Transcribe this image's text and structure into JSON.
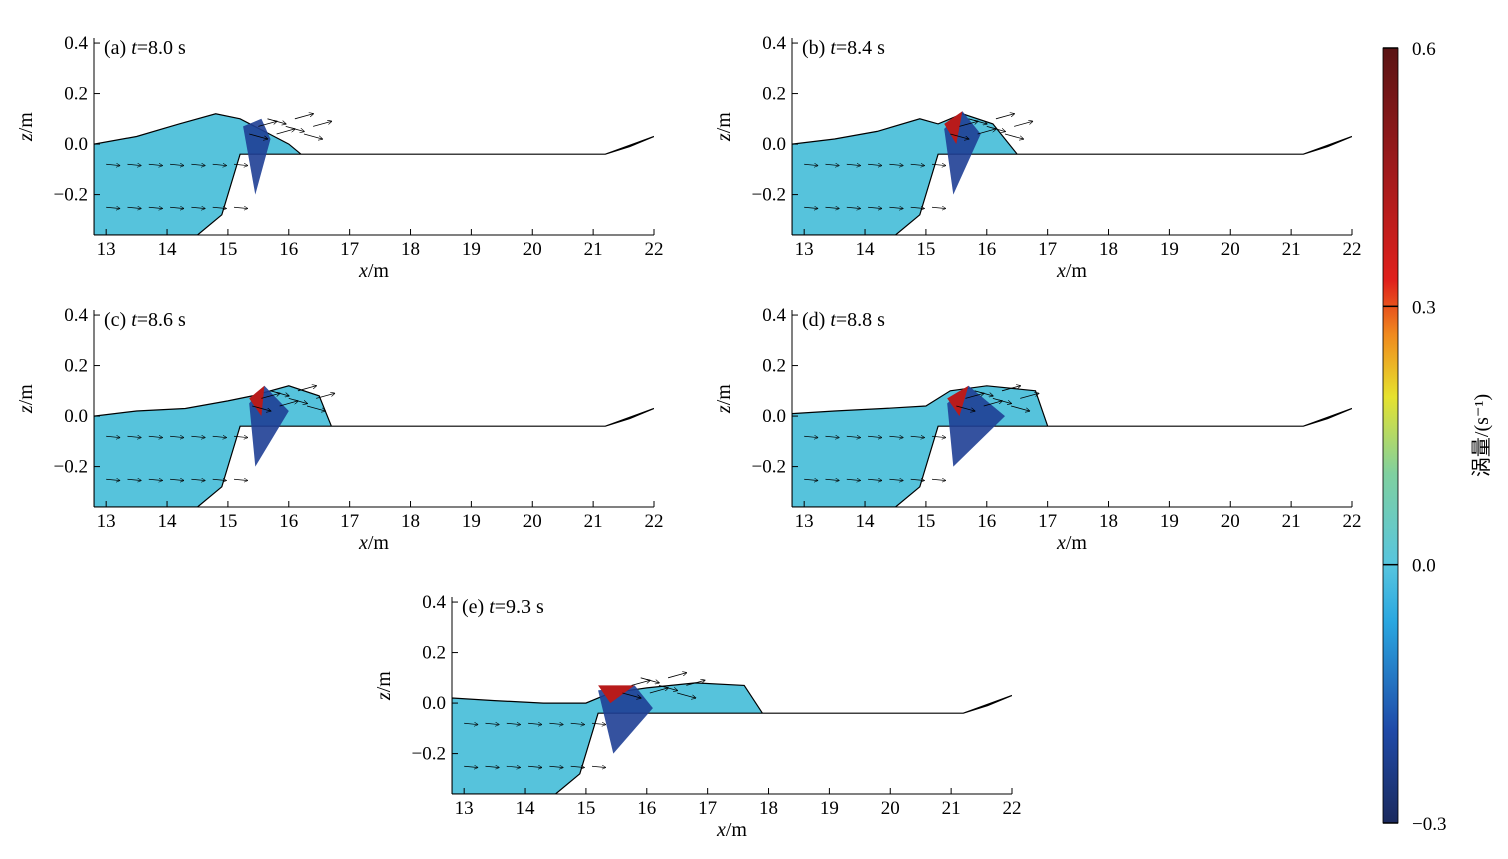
{
  "chart_data": {
    "type": "heatmap",
    "description_units": {
      "x": "m",
      "z": "m",
      "vorticity": "s^-1"
    },
    "xlabel": "x/m",
    "ylabel": "z/m",
    "xlim": [
      12.8,
      22.0
    ],
    "ylim": [
      -0.36,
      0.42
    ],
    "xticks": [
      "13",
      "14",
      "15",
      "16",
      "17",
      "18",
      "19",
      "20",
      "21",
      "22"
    ],
    "yticks": [
      "0.4",
      "0.2",
      "0.0",
      "−0.2"
    ],
    "colorbar": {
      "label": "涡量/(s⁻¹)",
      "min": -0.3,
      "max": 0.6,
      "ticks": [
        "0.6",
        "0.3",
        "0.0",
        "−0.3"
      ],
      "tick_values": [
        0.6,
        0.3,
        0.0,
        -0.3
      ]
    },
    "bathymetry": [
      [
        12.8,
        -0.36
      ],
      [
        14.5,
        -0.36
      ],
      [
        14.9,
        -0.28
      ],
      [
        15.2,
        -0.04
      ],
      [
        21.2,
        -0.04
      ],
      [
        22.0,
        0.03
      ]
    ],
    "panels": [
      {
        "label_prefix": "(a) ",
        "t_symbol": "t",
        "t_text": "=8.0 s",
        "surface": [
          [
            12.8,
            0.0
          ],
          [
            13.5,
            0.03
          ],
          [
            14.2,
            0.08
          ],
          [
            14.8,
            0.12
          ],
          [
            15.2,
            0.1
          ],
          [
            15.6,
            0.05
          ],
          [
            16.0,
            0.0
          ],
          [
            16.2,
            -0.04
          ]
        ],
        "vortex_region": [
          [
            15.25,
            0.07
          ],
          [
            15.55,
            0.1
          ],
          [
            15.7,
            0.02
          ],
          [
            15.45,
            -0.2
          ]
        ]
      },
      {
        "label_prefix": "(b) ",
        "t_symbol": "t",
        "t_text": "=8.4 s",
        "surface": [
          [
            12.8,
            0.0
          ],
          [
            13.5,
            0.02
          ],
          [
            14.2,
            0.05
          ],
          [
            14.9,
            0.1
          ],
          [
            15.2,
            0.08
          ],
          [
            15.6,
            0.12
          ],
          [
            16.1,
            0.08
          ],
          [
            16.5,
            -0.04
          ]
        ],
        "vortex_region": [
          [
            15.3,
            0.06
          ],
          [
            15.6,
            0.13
          ],
          [
            15.9,
            0.04
          ],
          [
            15.45,
            -0.2
          ]
        ]
      },
      {
        "label_prefix": "(c) ",
        "t_symbol": "t",
        "t_text": "=8.6 s",
        "surface": [
          [
            12.8,
            0.0
          ],
          [
            13.5,
            0.02
          ],
          [
            14.3,
            0.03
          ],
          [
            15.0,
            0.06
          ],
          [
            15.4,
            0.08
          ],
          [
            16.0,
            0.12
          ],
          [
            16.5,
            0.08
          ],
          [
            16.7,
            -0.04
          ]
        ],
        "vortex_region": [
          [
            15.35,
            0.05
          ],
          [
            15.6,
            0.12
          ],
          [
            16.0,
            0.02
          ],
          [
            15.45,
            -0.2
          ]
        ]
      },
      {
        "label_prefix": "(d) ",
        "t_symbol": "t",
        "t_text": "=8.8 s",
        "surface": [
          [
            12.8,
            0.01
          ],
          [
            13.5,
            0.02
          ],
          [
            14.3,
            0.03
          ],
          [
            15.0,
            0.04
          ],
          [
            15.4,
            0.1
          ],
          [
            16.0,
            0.12
          ],
          [
            16.8,
            0.1
          ],
          [
            17.0,
            -0.04
          ]
        ],
        "vortex_region": [
          [
            15.35,
            0.05
          ],
          [
            15.7,
            0.12
          ],
          [
            16.3,
            0.0
          ],
          [
            15.45,
            -0.2
          ]
        ]
      },
      {
        "label_prefix": "(e) ",
        "t_symbol": "t",
        "t_text": "=9.3 s",
        "surface": [
          [
            12.8,
            0.02
          ],
          [
            13.5,
            0.01
          ],
          [
            14.3,
            0.0
          ],
          [
            15.0,
            0.0
          ],
          [
            15.4,
            0.04
          ],
          [
            16.0,
            0.06
          ],
          [
            16.8,
            0.08
          ],
          [
            17.6,
            0.07
          ],
          [
            17.9,
            -0.04
          ]
        ],
        "vortex_region": [
          [
            15.2,
            0.05
          ],
          [
            15.8,
            0.07
          ],
          [
            16.1,
            -0.02
          ],
          [
            15.45,
            -0.2
          ]
        ]
      }
    ]
  }
}
